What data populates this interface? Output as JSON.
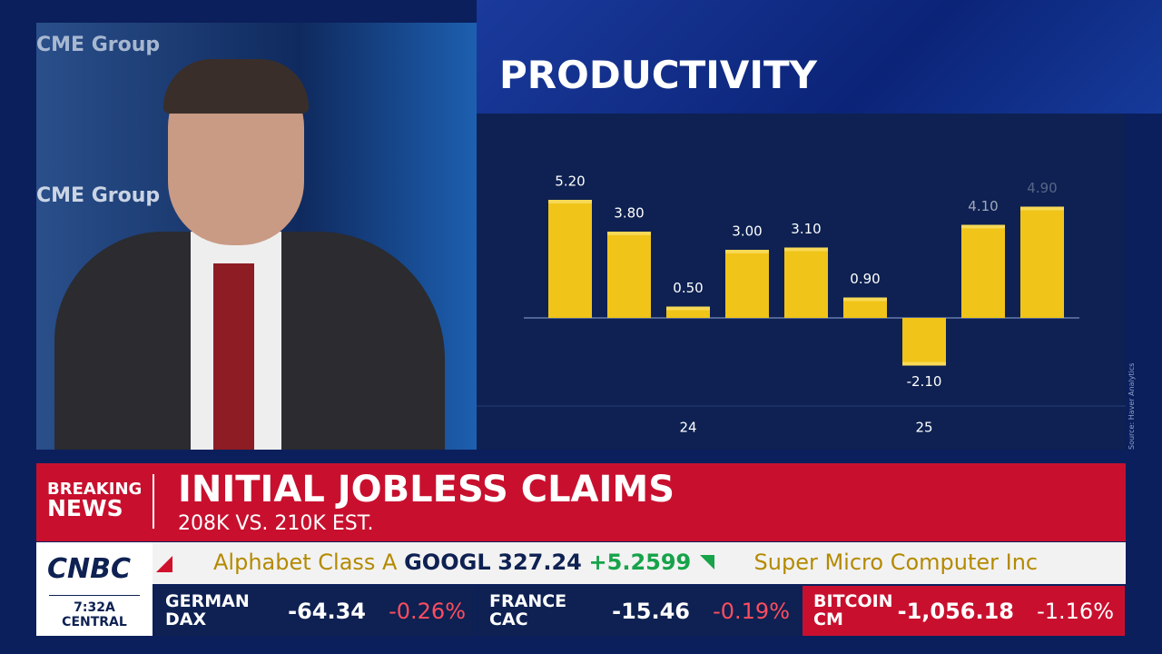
{
  "background_logo": "CME Group",
  "chart_data": {
    "type": "bar",
    "title": "PRODUCTIVITY",
    "categories": [
      null,
      null,
      "24",
      null,
      null,
      null,
      "25",
      null,
      null
    ],
    "values": [
      5.2,
      3.8,
      0.5,
      3.0,
      3.1,
      0.9,
      -2.1,
      4.1,
      4.9
    ],
    "value_labels": [
      "5.20",
      "3.80",
      "0.50",
      "3.00",
      "3.10",
      "0.90",
      "-2.10",
      "4.10",
      "4.90"
    ],
    "color": "#f0c419",
    "source": "Source: Haver Analytics"
  },
  "banner": {
    "tag": [
      "BREAKING",
      "NEWS"
    ],
    "headline": "INITIAL JOBLESS CLAIMS",
    "subhead": "208K VS. 210K EST."
  },
  "network": {
    "logo": "CNBC",
    "time": "7:32A",
    "zone": "CENTRAL"
  },
  "ticker": {
    "name": "Alphabet Class A",
    "symbol": "GOOGL",
    "price": "327.24",
    "change": "+5.2599",
    "next": "Super Micro Computer Inc"
  },
  "markets": [
    {
      "name": [
        "GERMAN",
        "DAX"
      ],
      "value": "-64.34",
      "change": "-0.26%"
    },
    {
      "name": [
        "FRANCE",
        "CAC"
      ],
      "value": "-15.46",
      "change": "-0.19%"
    },
    {
      "name": [
        "BITCOIN",
        "CM"
      ],
      "value": "-1,056.18",
      "change": "-1.16%"
    }
  ]
}
